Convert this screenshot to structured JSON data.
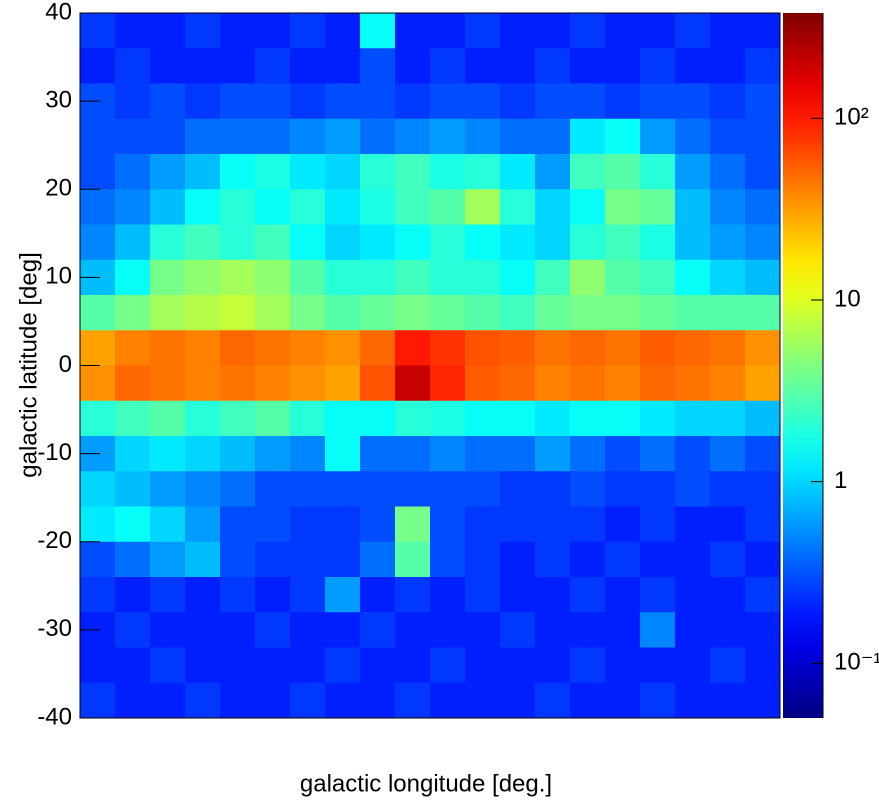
{
  "chart_data": {
    "type": "heatmap",
    "y_label": "galactic latitude [deg]",
    "x_label": "galactic longitude [deg.]",
    "ylim": [
      40,
      -40
    ],
    "yticks": [
      40,
      30,
      20,
      10,
      0,
      -10,
      -20,
      -30,
      -40
    ],
    "zlim": [
      0.05,
      380
    ],
    "log_z": true,
    "colormap": "rainbow",
    "zticks": [
      {
        "value": 0.1,
        "label": "10⁻¹"
      },
      1,
      10,
      {
        "value": 100,
        "label": "10²"
      }
    ],
    "z": [
      [
        0.25,
        0.2,
        0.2,
        0.25,
        0.2,
        0.2,
        0.25,
        0.2,
        1.5,
        0.2,
        0.2,
        0.25,
        0.2,
        0.2,
        0.25,
        0.2,
        0.2,
        0.25,
        0.2,
        0.2
      ],
      [
        0.2,
        0.25,
        0.2,
        0.2,
        0.2,
        0.25,
        0.2,
        0.2,
        0.3,
        0.2,
        0.25,
        0.2,
        0.2,
        0.25,
        0.2,
        0.2,
        0.25,
        0.2,
        0.2,
        0.25
      ],
      [
        0.3,
        0.25,
        0.3,
        0.25,
        0.3,
        0.3,
        0.25,
        0.3,
        0.3,
        0.25,
        0.3,
        0.3,
        0.25,
        0.3,
        0.3,
        0.25,
        0.3,
        0.3,
        0.25,
        0.3
      ],
      [
        0.3,
        0.3,
        0.3,
        0.4,
        0.4,
        0.4,
        0.5,
        0.6,
        0.4,
        0.5,
        0.6,
        0.5,
        0.4,
        0.4,
        1.2,
        1.5,
        0.6,
        0.4,
        0.3,
        0.3
      ],
      [
        0.3,
        0.4,
        0.6,
        0.8,
        1.5,
        1.8,
        1.2,
        1.0,
        2.0,
        2.5,
        1.8,
        2.0,
        1.2,
        0.6,
        2.5,
        3.0,
        2.0,
        0.6,
        0.4,
        0.3
      ],
      [
        0.4,
        0.5,
        0.8,
        1.5,
        2.0,
        1.5,
        2.0,
        1.2,
        1.8,
        2.5,
        3.0,
        6.0,
        2.0,
        1.0,
        1.5,
        4.0,
        3.5,
        0.8,
        0.5,
        0.4
      ],
      [
        0.5,
        0.8,
        2.0,
        2.5,
        2.0,
        2.5,
        1.5,
        1.0,
        1.2,
        1.5,
        2.0,
        1.5,
        1.2,
        1.0,
        2.0,
        2.5,
        1.8,
        0.8,
        0.6,
        0.5
      ],
      [
        0.8,
        1.5,
        4.0,
        5.0,
        6.0,
        5.0,
        3.0,
        2.0,
        2.0,
        2.5,
        2.0,
        2.0,
        1.5,
        2.5,
        5.0,
        3.0,
        2.5,
        1.5,
        1.0,
        0.8
      ],
      [
        3.0,
        4.0,
        6.0,
        7.0,
        8.0,
        6.0,
        4.0,
        3.0,
        3.5,
        4.0,
        3.5,
        3.0,
        2.5,
        3.5,
        4.0,
        4.0,
        3.5,
        3.0,
        3.0,
        3.0
      ],
      [
        30,
        40,
        45,
        40,
        50,
        45,
        40,
        35,
        50,
        100,
        80,
        60,
        55,
        45,
        50,
        45,
        55,
        50,
        45,
        35
      ],
      [
        35,
        50,
        45,
        40,
        45,
        40,
        35,
        30,
        60,
        200,
        90,
        55,
        50,
        40,
        45,
        40,
        50,
        45,
        40,
        30
      ],
      [
        2.0,
        2.5,
        3.0,
        2.0,
        2.5,
        3.0,
        2.0,
        1.5,
        1.5,
        2.0,
        1.8,
        1.5,
        1.5,
        1.2,
        1.5,
        1.5,
        1.2,
        1.0,
        1.0,
        0.8
      ],
      [
        0.6,
        1.0,
        1.2,
        1.0,
        0.8,
        0.6,
        0.5,
        1.5,
        0.4,
        0.4,
        0.5,
        0.4,
        0.4,
        0.6,
        0.4,
        0.3,
        0.4,
        0.3,
        0.4,
        0.3
      ],
      [
        1.0,
        0.8,
        0.6,
        0.5,
        0.4,
        0.3,
        0.3,
        0.3,
        0.3,
        0.3,
        0.3,
        0.3,
        0.25,
        0.25,
        0.3,
        0.25,
        0.25,
        0.3,
        0.25,
        0.25
      ],
      [
        1.2,
        1.5,
        1.0,
        0.6,
        0.3,
        0.3,
        0.25,
        0.25,
        0.3,
        4.0,
        0.3,
        0.25,
        0.25,
        0.25,
        0.25,
        0.2,
        0.25,
        0.2,
        0.2,
        0.25
      ],
      [
        0.3,
        0.4,
        0.6,
        0.8,
        0.3,
        0.25,
        0.25,
        0.25,
        0.4,
        3.0,
        0.3,
        0.25,
        0.2,
        0.25,
        0.2,
        0.25,
        0.2,
        0.2,
        0.25,
        0.2
      ],
      [
        0.25,
        0.2,
        0.25,
        0.2,
        0.25,
        0.2,
        0.25,
        0.6,
        0.2,
        0.25,
        0.2,
        0.25,
        0.2,
        0.2,
        0.25,
        0.2,
        0.25,
        0.2,
        0.2,
        0.25
      ],
      [
        0.2,
        0.25,
        0.2,
        0.2,
        0.2,
        0.25,
        0.2,
        0.2,
        0.25,
        0.2,
        0.2,
        0.2,
        0.25,
        0.2,
        0.2,
        0.2,
        0.5,
        0.2,
        0.2,
        0.2
      ],
      [
        0.2,
        0.2,
        0.25,
        0.2,
        0.2,
        0.2,
        0.2,
        0.25,
        0.2,
        0.2,
        0.25,
        0.2,
        0.2,
        0.2,
        0.25,
        0.2,
        0.2,
        0.2,
        0.25,
        0.2
      ],
      [
        0.25,
        0.2,
        0.2,
        0.25,
        0.2,
        0.2,
        0.25,
        0.2,
        0.2,
        0.25,
        0.2,
        0.2,
        0.2,
        0.25,
        0.2,
        0.2,
        0.25,
        0.2,
        0.2,
        0.2
      ]
    ]
  }
}
